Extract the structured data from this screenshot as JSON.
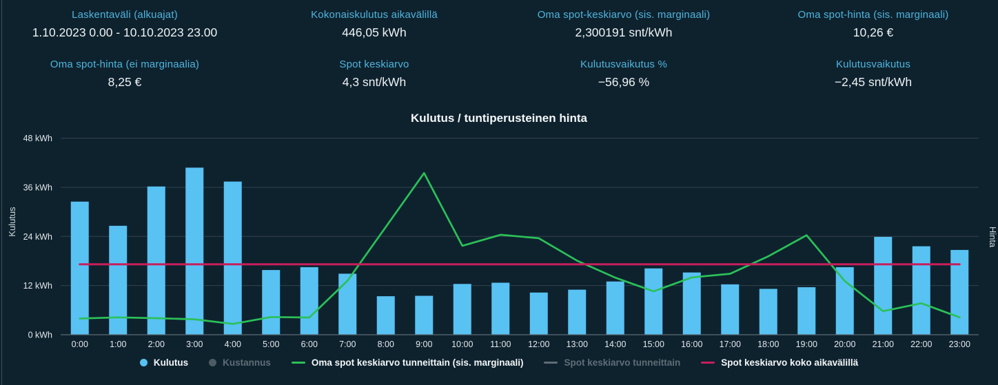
{
  "stats": [
    {
      "label": "Laskentaväli (alkuajat)",
      "value": "1.10.2023 0.00 - 10.10.2023 23.00"
    },
    {
      "label": "Kokonaiskulutus aikavälillä",
      "value": "446,05 kWh"
    },
    {
      "label": "Oma spot-keskiarvo (sis. marginaali)",
      "value": "2,300191 snt/kWh"
    },
    {
      "label": "Oma spot-hinta (sis. marginaali)",
      "value": "10,26 €"
    },
    {
      "label": "Oma spot-hinta (ei marginaalia)",
      "value": "8,25 €"
    },
    {
      "label": "Spot keskiarvo",
      "value": "4,3 snt/kWh"
    },
    {
      "label": "Kulutusvaikutus %",
      "value": "−56,96 %"
    },
    {
      "label": "Kulutusvaikutus",
      "value": "−2,45 snt/kWh"
    }
  ],
  "chart_data": {
    "type": "bar",
    "title": "Kulutus / tuntiperusteinen hinta",
    "categories": [
      "0:00",
      "1:00",
      "2:00",
      "3:00",
      "4:00",
      "5:00",
      "6:00",
      "7:00",
      "8:00",
      "9:00",
      "10:00",
      "11:00",
      "12:00",
      "13:00",
      "14:00",
      "15:00",
      "16:00",
      "17:00",
      "18:00",
      "19:00",
      "20:00",
      "21:00",
      "22:00",
      "23:00"
    ],
    "left_axis": {
      "title": "Kulutus",
      "unit": "kWh",
      "min": 0,
      "max": 48,
      "tick_step": 12,
      "tick_labels": [
        "0 kWh",
        "12 kWh",
        "24 kWh",
        "36 kWh",
        "48 kWh"
      ]
    },
    "right_axis": {
      "title": "Hinta",
      "unit": "snt/kWh",
      "min": 0,
      "max": 12,
      "tick_labels_visible": false
    },
    "grid": "horizontal",
    "legend_position": "bottom",
    "series": [
      {
        "name": "Kulutus",
        "type": "bar",
        "axis": "left",
        "color": "#58c2f3",
        "visible": true,
        "values": [
          32.5,
          26.6,
          36.2,
          40.8,
          37.4,
          15.8,
          16.5,
          14.9,
          9.4,
          9.5,
          12.4,
          12.7,
          10.3,
          11.0,
          13.0,
          16.2,
          15.2,
          12.3,
          11.2,
          11.6,
          16.5,
          23.9,
          21.6,
          20.7
        ]
      },
      {
        "name": "Kustannus",
        "type": "bar",
        "axis": "right",
        "color": "#4e5b64",
        "visible": false,
        "values": []
      },
      {
        "name": "Oma spot keskiarvo tunneittain (sis. marginaali)",
        "type": "line",
        "axis": "right",
        "color": "#2bc158",
        "visible": true,
        "values": [
          0.99,
          1.06,
          1.01,
          0.94,
          0.66,
          1.08,
          1.05,
          3.3,
          6.58,
          9.87,
          5.43,
          6.1,
          5.89,
          4.52,
          3.48,
          2.65,
          3.5,
          3.72,
          4.79,
          6.07,
          3.27,
          1.44,
          1.92,
          1.06
        ]
      },
      {
        "name": "Spot keskiarvo tunneittain",
        "type": "line",
        "axis": "right",
        "color": "#5f6d77",
        "visible": false,
        "values": []
      },
      {
        "name": "Spot keskiarvo koko aikavälillä",
        "type": "constant-line",
        "axis": "right",
        "color": "#c81e5b",
        "visible": true,
        "constant_value": 4.3
      }
    ]
  },
  "colors": {
    "background": "#0e222e",
    "accent_cyan": "#4fb5de",
    "value_text": "#eef2f4",
    "bar_blue": "#58c2f3",
    "line_green": "#2bc158",
    "line_red": "#c81e5b",
    "disabled_gray": "#5f6d77",
    "gridline": "#33424d",
    "axis_line": "#5c6b74",
    "tick_text": "#e3e8eb"
  }
}
